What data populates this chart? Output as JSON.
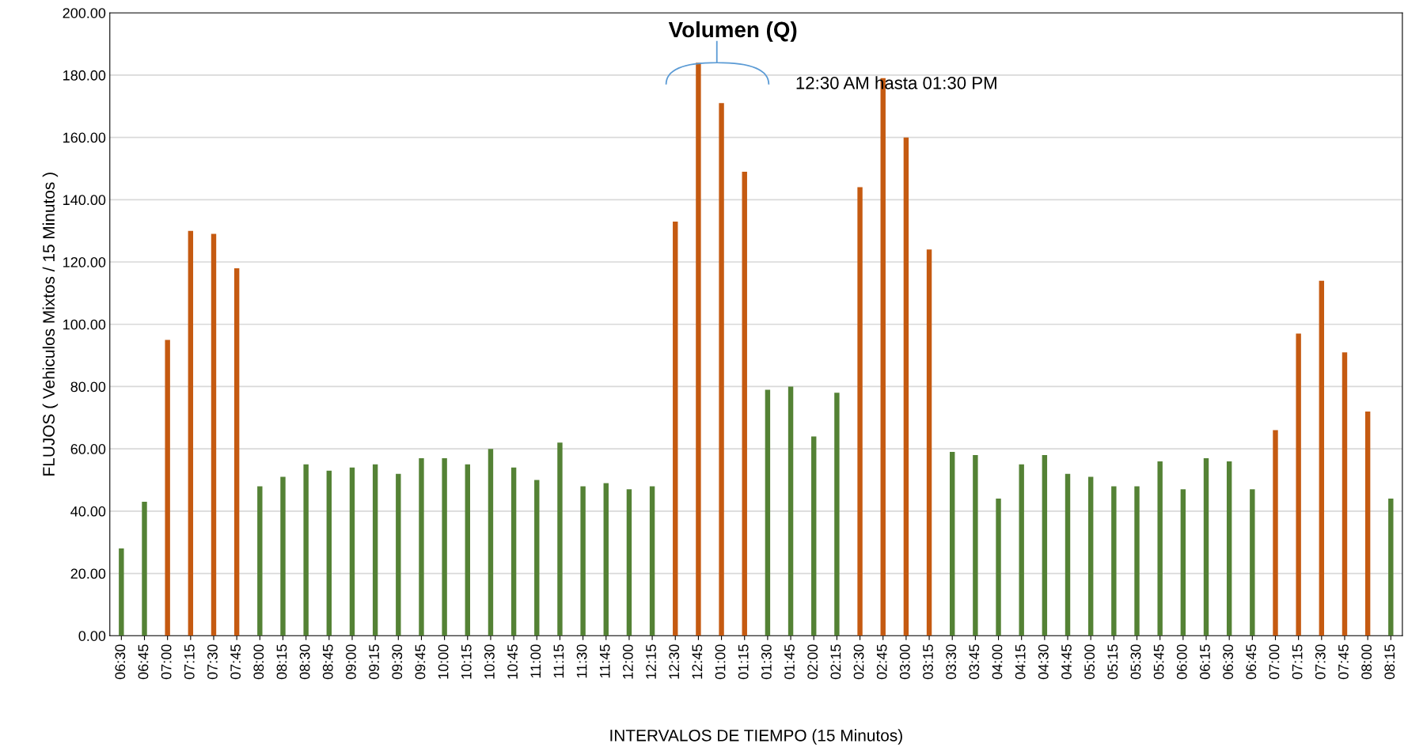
{
  "chart_data": {
    "type": "bar",
    "title": "Volumen (Q)",
    "xlabel": "INTERVALOS DE TIEMPO (15 Minutos)",
    "ylabel": "FLUJOS ( Vehiculos Mixtos / 15 Minutos )",
    "annotations": [
      "12:30 AM hasta 01:30 PM"
    ],
    "categories": [
      "06:30",
      "06:45",
      "07:00",
      "07:15",
      "07:30",
      "07:45",
      "08:00",
      "08:15",
      "08:30",
      "08:45",
      "09:00",
      "09:15",
      "09:30",
      "09:45",
      "10:00",
      "10:15",
      "10:30",
      "10:45",
      "11:00",
      "11:15",
      "11:30",
      "11:45",
      "12:00",
      "12:15",
      "12:30",
      "12:45",
      "01:00",
      "01:15",
      "01:30",
      "01:45",
      "02:00",
      "02:15",
      "02:30",
      "02:45",
      "03:00",
      "03:15",
      "03:30",
      "03:45",
      "04:00",
      "04:15",
      "04:30",
      "04:45",
      "05:00",
      "05:15",
      "05:30",
      "05:45",
      "06:00",
      "06:15",
      "06:30",
      "06:45",
      "07:00",
      "07:15",
      "07:30",
      "07:45",
      "08:00",
      "08:15"
    ],
    "values": [
      28,
      43,
      95,
      130,
      129,
      118,
      48,
      51,
      55,
      53,
      54,
      55,
      52,
      57,
      57,
      55,
      60,
      54,
      50,
      62,
      48,
      49,
      47,
      48,
      133,
      184,
      171,
      149,
      79,
      80,
      64,
      78,
      144,
      179,
      160,
      124,
      59,
      58,
      44,
      55,
      58,
      52,
      51,
      48,
      48,
      56,
      47,
      57,
      56,
      47,
      66,
      97,
      114,
      91,
      72,
      44
    ],
    "colors": [
      "#548235",
      "#548235",
      "#c55a11",
      "#c55a11",
      "#c55a11",
      "#c55a11",
      "#548235",
      "#548235",
      "#548235",
      "#548235",
      "#548235",
      "#548235",
      "#548235",
      "#548235",
      "#548235",
      "#548235",
      "#548235",
      "#548235",
      "#548235",
      "#548235",
      "#548235",
      "#548235",
      "#548235",
      "#548235",
      "#c55a11",
      "#c55a11",
      "#c55a11",
      "#c55a11",
      "#548235",
      "#548235",
      "#548235",
      "#548235",
      "#c55a11",
      "#c55a11",
      "#c55a11",
      "#c55a11",
      "#548235",
      "#548235",
      "#548235",
      "#548235",
      "#548235",
      "#548235",
      "#548235",
      "#548235",
      "#548235",
      "#548235",
      "#548235",
      "#548235",
      "#548235",
      "#548235",
      "#c55a11",
      "#c55a11",
      "#c55a11",
      "#c55a11",
      "#c55a11",
      "#548235"
    ],
    "ylim": [
      0,
      200
    ],
    "yticks": [
      {
        "value": 0,
        "label": "0.00"
      },
      {
        "value": 20,
        "label": "20.00"
      },
      {
        "value": 40,
        "label": "40.00"
      },
      {
        "value": 60,
        "label": "60.00"
      },
      {
        "value": 80,
        "label": "80.00"
      },
      {
        "value": 100,
        "label": "100.00"
      },
      {
        "value": 120,
        "label": "120.00"
      },
      {
        "value": 140,
        "label": "140.00"
      },
      {
        "value": 160,
        "label": "160.00"
      },
      {
        "value": 180,
        "label": "180.00"
      },
      {
        "value": 200,
        "label": "200.00"
      }
    ],
    "grid": "y",
    "legend": false
  }
}
